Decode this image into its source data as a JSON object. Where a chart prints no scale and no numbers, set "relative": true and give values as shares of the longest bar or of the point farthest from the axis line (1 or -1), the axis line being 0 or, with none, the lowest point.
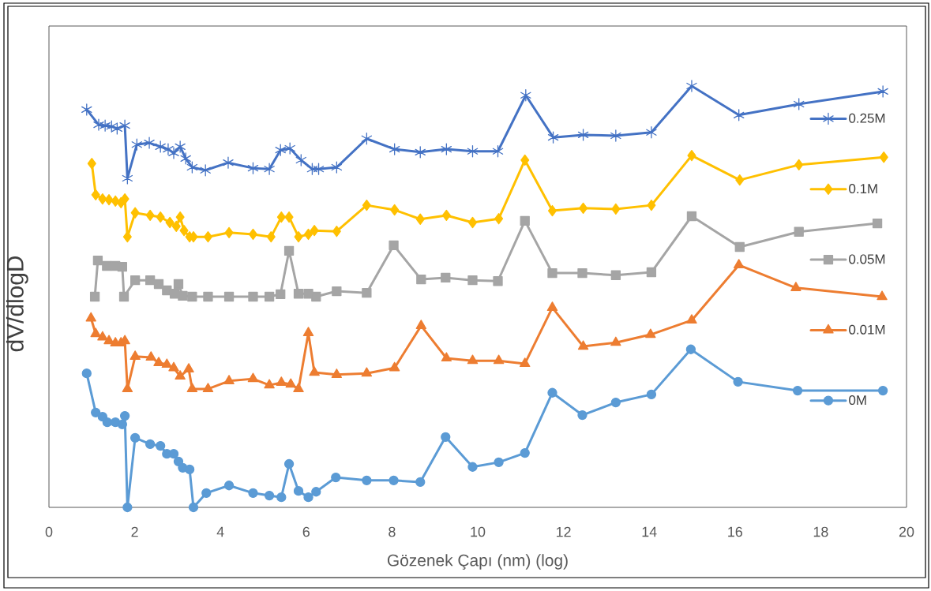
{
  "chart_data": {
    "type": "line",
    "relative": true,
    "xlabel": "Gözenek Çapı (nm) (log)",
    "ylabel": "dV/dlogD",
    "xlim": [
      0,
      20
    ],
    "xticks": [
      0,
      2,
      4,
      6,
      8,
      10,
      12,
      14,
      16,
      18,
      20
    ],
    "legend": "right",
    "line_style": "solid",
    "series": [
      {
        "name": "0.25M",
        "color": "#4472c4",
        "marker": "cross",
        "x": [
          0.88,
          1.16,
          1.31,
          1.46,
          1.59,
          1.77,
          1.83,
          2.05,
          2.34,
          2.6,
          2.78,
          2.91,
          3.06,
          3.19,
          3.34,
          3.65,
          4.18,
          4.76,
          5.14,
          5.4,
          5.62,
          5.88,
          6.14,
          6.29,
          6.71,
          7.41,
          8.06,
          8.66,
          9.27,
          9.88,
          10.47,
          11.12,
          11.76,
          12.46,
          13.22,
          14.05,
          14.99,
          16.09,
          17.49,
          19.45
        ],
        "values": [
          0.944,
          0.908,
          0.906,
          0.904,
          0.899,
          0.906,
          0.781,
          0.861,
          0.865,
          0.856,
          0.85,
          0.841,
          0.856,
          0.828,
          0.807,
          0.8,
          0.818,
          0.805,
          0.803,
          0.848,
          0.852,
          0.824,
          0.803,
          0.803,
          0.807,
          0.875,
          0.85,
          0.843,
          0.85,
          0.845,
          0.845,
          0.978,
          0.878,
          0.884,
          0.882,
          0.89,
          1.0,
          0.931,
          0.957,
          0.987
        ]
      },
      {
        "name": "0.1M",
        "color": "#ffc000",
        "marker": "diamond",
        "x": [
          1.0,
          1.09,
          1.25,
          1.4,
          1.55,
          1.68,
          1.77,
          1.83,
          2.01,
          2.36,
          2.6,
          2.82,
          2.97,
          3.06,
          3.15,
          3.28,
          3.37,
          3.71,
          4.2,
          4.76,
          5.18,
          5.42,
          5.6,
          5.82,
          6.05,
          6.19,
          6.71,
          7.41,
          8.06,
          8.66,
          9.27,
          9.88,
          10.49,
          11.1,
          11.74,
          12.46,
          13.22,
          14.05,
          14.99,
          16.11,
          17.49,
          19.47
        ],
        "values": [
          0.816,
          0.742,
          0.732,
          0.73,
          0.727,
          0.723,
          0.732,
          0.642,
          0.699,
          0.693,
          0.689,
          0.676,
          0.667,
          0.689,
          0.657,
          0.642,
          0.642,
          0.642,
          0.652,
          0.648,
          0.642,
          0.689,
          0.689,
          0.642,
          0.648,
          0.657,
          0.655,
          0.717,
          0.706,
          0.684,
          0.693,
          0.676,
          0.685,
          0.824,
          0.704,
          0.71,
          0.708,
          0.717,
          0.835,
          0.777,
          0.813,
          0.831
        ]
      },
      {
        "name": "0.05M",
        "color": "#a5a5a5",
        "marker": "square",
        "x": [
          1.07,
          1.14,
          1.35,
          1.55,
          1.71,
          1.75,
          2.01,
          2.36,
          2.56,
          2.75,
          2.93,
          3.02,
          3.12,
          3.34,
          3.71,
          4.2,
          4.76,
          5.14,
          5.4,
          5.6,
          5.82,
          6.05,
          6.23,
          6.71,
          7.41,
          8.04,
          8.68,
          9.25,
          9.88,
          10.47,
          11.1,
          11.74,
          12.44,
          13.22,
          14.05,
          14.99,
          16.11,
          17.49,
          19.32
        ],
        "values": [
          0.5,
          0.586,
          0.573,
          0.573,
          0.571,
          0.5,
          0.539,
          0.539,
          0.53,
          0.515,
          0.507,
          0.53,
          0.502,
          0.5,
          0.5,
          0.5,
          0.5,
          0.5,
          0.506,
          0.609,
          0.507,
          0.507,
          0.5,
          0.513,
          0.509,
          0.622,
          0.541,
          0.545,
          0.539,
          0.537,
          0.68,
          0.556,
          0.556,
          0.551,
          0.558,
          0.691,
          0.618,
          0.654,
          0.674
        ]
      },
      {
        "name": "0.01M",
        "color": "#ed7d31",
        "marker": "triangle",
        "x": [
          0.98,
          1.09,
          1.25,
          1.4,
          1.55,
          1.68,
          1.77,
          1.83,
          2.01,
          2.38,
          2.56,
          2.75,
          2.91,
          3.06,
          3.26,
          3.34,
          3.71,
          4.2,
          4.76,
          5.14,
          5.42,
          5.64,
          5.82,
          6.05,
          6.19,
          6.71,
          7.41,
          8.06,
          8.68,
          9.27,
          9.88,
          10.49,
          11.1,
          11.74,
          12.46,
          13.22,
          14.03,
          14.99,
          16.09,
          17.42,
          19.43
        ],
        "values": [
          0.449,
          0.412,
          0.404,
          0.395,
          0.39,
          0.39,
          0.395,
          0.281,
          0.358,
          0.356,
          0.343,
          0.339,
          0.331,
          0.311,
          0.328,
          0.281,
          0.281,
          0.3,
          0.305,
          0.29,
          0.296,
          0.292,
          0.281,
          0.414,
          0.32,
          0.315,
          0.318,
          0.331,
          0.431,
          0.354,
          0.348,
          0.348,
          0.341,
          0.474,
          0.382,
          0.391,
          0.41,
          0.444,
          0.575,
          0.521,
          0.5
        ]
      },
      {
        "name": "0M",
        "color": "#5b9bd5",
        "marker": "circle",
        "x": [
          0.88,
          1.09,
          1.25,
          1.36,
          1.55,
          1.71,
          1.77,
          1.83,
          2.01,
          2.36,
          2.6,
          2.75,
          2.91,
          3.02,
          3.12,
          3.28,
          3.37,
          3.67,
          4.2,
          4.76,
          5.14,
          5.42,
          5.6,
          5.82,
          6.05,
          6.23,
          6.69,
          7.41,
          8.04,
          8.66,
          9.25,
          9.88,
          10.49,
          11.1,
          11.74,
          12.44,
          13.22,
          14.05,
          14.97,
          16.07,
          17.46,
          19.45
        ],
        "values": [
          0.318,
          0.225,
          0.215,
          0.202,
          0.202,
          0.197,
          0.217,
          0,
          0.165,
          0.15,
          0.146,
          0.127,
          0.127,
          0.109,
          0.094,
          0.09,
          0,
          0.034,
          0.052,
          0.034,
          0.028,
          0.024,
          0.103,
          0.039,
          0.024,
          0.037,
          0.071,
          0.064,
          0.064,
          0.06,
          0.167,
          0.096,
          0.107,
          0.129,
          0.272,
          0.219,
          0.249,
          0.268,
          0.375,
          0.298,
          0.277,
          0.277
        ]
      }
    ]
  }
}
